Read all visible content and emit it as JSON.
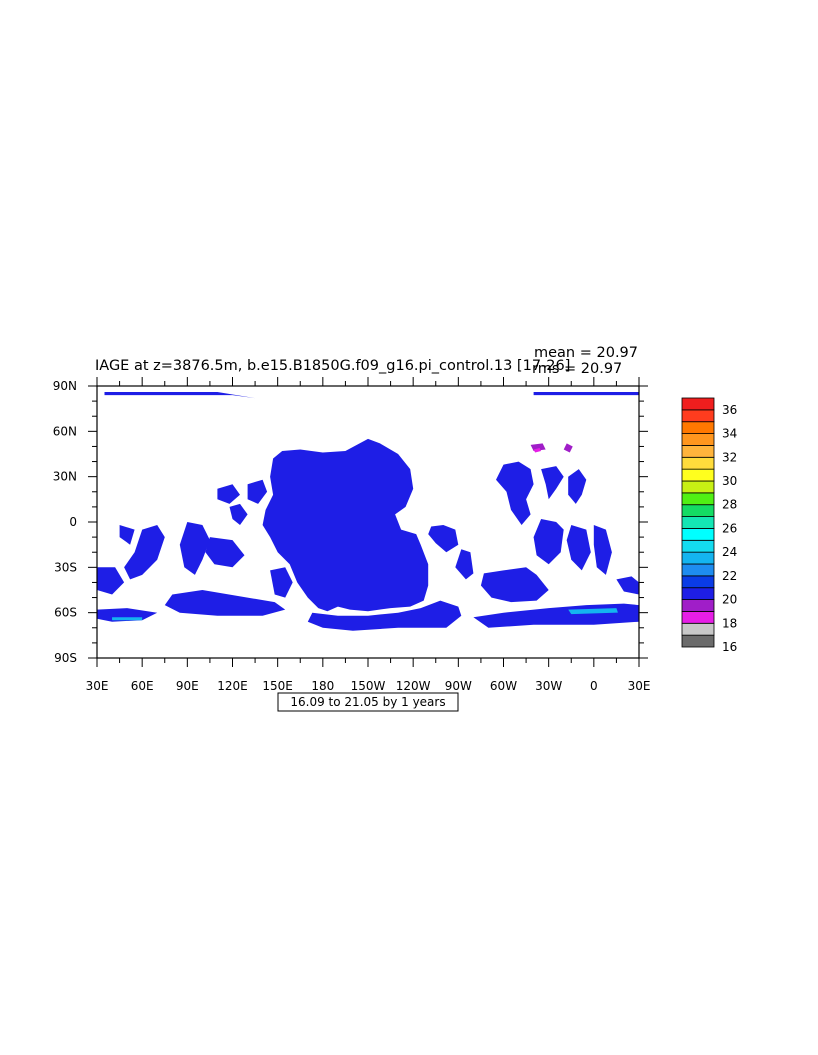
{
  "chart_data": {
    "type": "heatmap",
    "title": "IAGE at z=3876.5m, b.e15.B1850G.f09_g16.pi_control.13 [17-26]",
    "stats": {
      "mean_label": "mean = 20.97",
      "rms_label": "rms = 20.97"
    },
    "subtitle": "16.09 to 21.05 by 1 years",
    "x_ticks": [
      "30E",
      "60E",
      "90E",
      "120E",
      "150E",
      "180",
      "150W",
      "120W",
      "90W",
      "60W",
      "30W",
      "0",
      "30E"
    ],
    "y_ticks": [
      "90N",
      "60N",
      "30N",
      "0",
      "30S",
      "60S",
      "90S"
    ],
    "xlim": [
      30,
      390
    ],
    "ylim": [
      -90,
      90
    ],
    "colorbar": {
      "levels": [
        16,
        18,
        20,
        22,
        24,
        26,
        28,
        30,
        32,
        34,
        36
      ],
      "colors": [
        "#6b6b6b",
        "#c8c8c8",
        "#e61ee6",
        "#a01ec8",
        "#1e1ee6",
        "#0a3ce6",
        "#1e8cf0",
        "#14b4f0",
        "#14dcf0",
        "#00ffff",
        "#14e6b4",
        "#14dc64",
        "#50f014",
        "#c8f014",
        "#ffff1e",
        "#ffdc3c",
        "#ffb43c",
        "#ff961e",
        "#ff7800",
        "#ff3c1e",
        "#f01e1e",
        "#c80000"
      ]
    },
    "dominant_value_range": [
      20,
      21
    ],
    "dominant_color": "#1e1ee6",
    "minor_values": [
      {
        "region": "subpolar North Atlantic",
        "range": [
          19,
          20
        ]
      },
      {
        "region": "Southern Ocean patches",
        "range": [
          22,
          24
        ]
      }
    ]
  }
}
